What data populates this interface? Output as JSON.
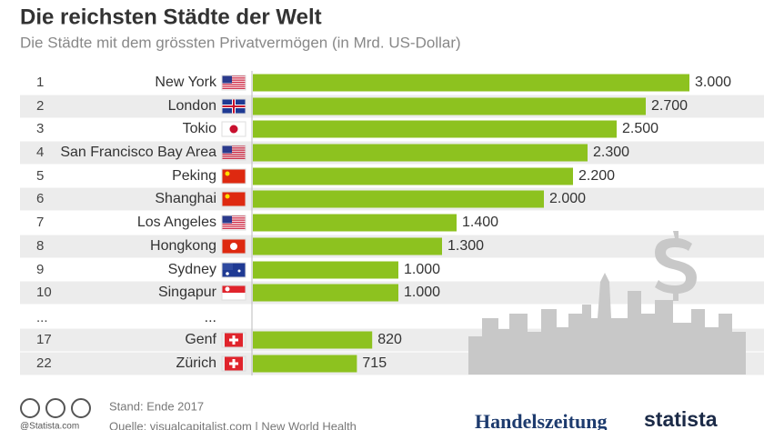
{
  "chart_data": {
    "type": "bar",
    "orientation": "horizontal",
    "title": "Die reichsten Städte der Welt",
    "subtitle": "Die Städte mit dem grössten Privatvermögen (in Mrd. US-Dollar)",
    "ranks": [
      "1",
      "2",
      "3",
      "4",
      "5",
      "6",
      "7",
      "8",
      "9",
      "10",
      "...",
      "17",
      "22"
    ],
    "categories": [
      "New York",
      "London",
      "Tokio",
      "San Francisco Bay Area",
      "Peking",
      "Shanghai",
      "Los Angeles",
      "Hongkong",
      "Sydney",
      "Singapur",
      "...",
      "Genf",
      "Zürich"
    ],
    "values": [
      3000,
      2700,
      2500,
      2300,
      2200,
      2000,
      1400,
      1300,
      1000,
      1000,
      null,
      820,
      715
    ],
    "value_labels": [
      "3.000",
      "2.700",
      "2.500",
      "2.300",
      "2.200",
      "2.000",
      "1.400",
      "1.300",
      "1.000",
      "1.000",
      null,
      "820",
      "715"
    ],
    "color": "#8dc21f"
  },
  "footer": {
    "date": "Stand: Ende 2017",
    "source": "Quelle: visualcapitalist.com | New World Health",
    "credit": "@Statista.com",
    "publisher": "Handelszeitung",
    "brand": "statista"
  }
}
